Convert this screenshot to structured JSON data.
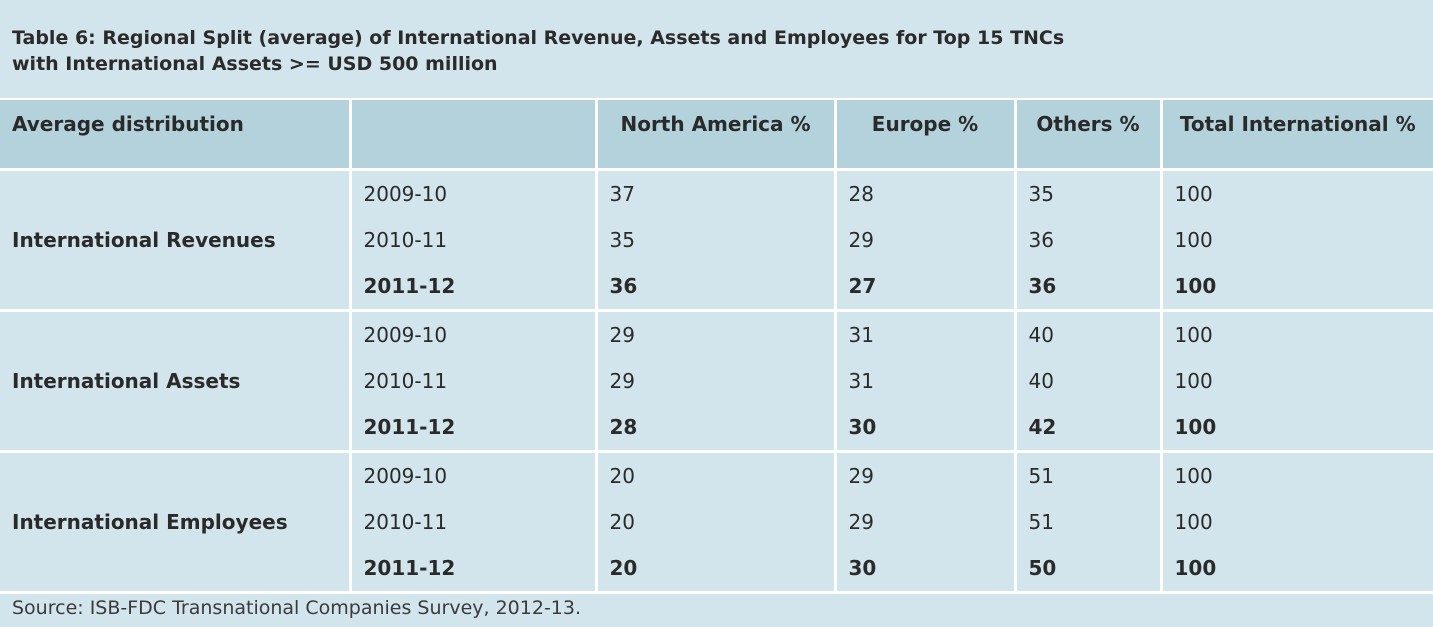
{
  "title": {
    "line1": "Table 6: Regional Split (average) of International Revenue, Assets and Employees for Top 15 TNCs",
    "line2": "with International Assets >= USD 500 million"
  },
  "table": {
    "headers": [
      "Average distribution",
      "",
      "North America %",
      "Europe %",
      "Others %",
      "Total International %"
    ],
    "groups": [
      {
        "label": "International Revenues",
        "rows": [
          {
            "year": "2009-10",
            "na": "37",
            "eu": "28",
            "others": "35",
            "total": "100"
          },
          {
            "year": "2010-11",
            "na": "35",
            "eu": "29",
            "others": "36",
            "total": "100"
          },
          {
            "year": "2011-12",
            "na": "36",
            "eu": "27",
            "others": "36",
            "total": "100"
          }
        ]
      },
      {
        "label": "International Assets",
        "rows": [
          {
            "year": "2009-10",
            "na": "29",
            "eu": "31",
            "others": "40",
            "total": "100"
          },
          {
            "year": "2010-11",
            "na": "29",
            "eu": "31",
            "others": "40",
            "total": "100"
          },
          {
            "year": "2011-12",
            "na": "28",
            "eu": "30",
            "others": "42",
            "total": "100"
          }
        ]
      },
      {
        "label": "International Employees",
        "rows": [
          {
            "year": "2009-10",
            "na": "20",
            "eu": "29",
            "others": "51",
            "total": "100"
          },
          {
            "year": "2010-11",
            "na": "20",
            "eu": "29",
            "others": "51",
            "total": "100"
          },
          {
            "year": "2011-12",
            "na": "20",
            "eu": "30",
            "others": "50",
            "total": "100"
          }
        ]
      }
    ]
  },
  "source": "Source: ISB-FDC Transnational Companies Survey, 2012-13."
}
